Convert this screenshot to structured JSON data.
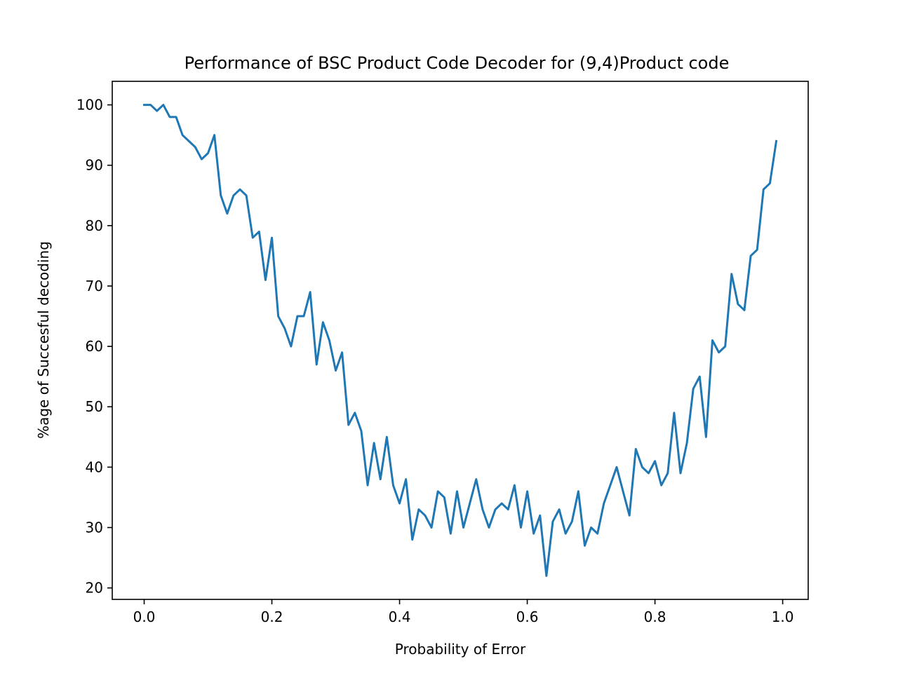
{
  "chart_data": {
    "type": "line",
    "title": "Performance of BSC Product Code Decoder for (9,4)Product code",
    "xlabel": "Probability of Error",
    "ylabel": "%age of Succesful decoding",
    "xlim": [
      -0.05,
      1.04
    ],
    "ylim": [
      18.1,
      103.9
    ],
    "xticks": [
      0.0,
      0.2,
      0.4,
      0.6,
      0.8,
      1.0
    ],
    "xtick_labels": [
      "0.0",
      "0.2",
      "0.4",
      "0.6",
      "0.8",
      "1.0"
    ],
    "yticks": [
      20,
      30,
      40,
      50,
      60,
      70,
      80,
      90,
      100
    ],
    "ytick_labels": [
      "20",
      "30",
      "40",
      "50",
      "60",
      "70",
      "80",
      "90",
      "100"
    ],
    "grid": false,
    "colors": {
      "line": "#1f77b4",
      "axes": "#000000",
      "background": "#ffffff"
    },
    "series": [
      {
        "x": [
          0.0,
          0.01,
          0.02,
          0.03,
          0.04,
          0.05,
          0.06,
          0.07,
          0.08,
          0.09,
          0.1,
          0.11,
          0.12,
          0.13,
          0.14,
          0.15,
          0.16,
          0.17,
          0.18,
          0.19,
          0.2,
          0.21,
          0.22,
          0.23,
          0.24,
          0.25,
          0.26,
          0.27,
          0.28,
          0.29,
          0.3,
          0.31,
          0.32,
          0.33,
          0.34,
          0.35,
          0.36,
          0.37,
          0.38,
          0.39,
          0.4,
          0.41,
          0.42,
          0.43,
          0.44,
          0.45,
          0.46,
          0.47,
          0.48,
          0.49,
          0.5,
          0.51,
          0.52,
          0.53,
          0.54,
          0.55,
          0.56,
          0.57,
          0.58,
          0.59,
          0.6,
          0.61,
          0.62,
          0.63,
          0.64,
          0.65,
          0.66,
          0.67,
          0.68,
          0.69,
          0.7,
          0.71,
          0.72,
          0.73,
          0.74,
          0.75,
          0.76,
          0.77,
          0.78,
          0.79,
          0.8,
          0.81,
          0.82,
          0.83,
          0.84,
          0.85,
          0.86,
          0.87,
          0.88,
          0.89,
          0.9,
          0.91,
          0.92,
          0.93,
          0.94,
          0.95,
          0.96,
          0.97,
          0.98,
          0.99
        ],
        "values": [
          100,
          100,
          99,
          100,
          98,
          98,
          95,
          94,
          93,
          91,
          92,
          95,
          85,
          82,
          85,
          86,
          85,
          78,
          79,
          71,
          78,
          65,
          63,
          60,
          65,
          65,
          69,
          57,
          64,
          61,
          56,
          59,
          47,
          49,
          46,
          37,
          44,
          38,
          45,
          37,
          34,
          38,
          28,
          33,
          32,
          30,
          36,
          35,
          29,
          36,
          30,
          34,
          38,
          33,
          30,
          33,
          34,
          33,
          37,
          30,
          36,
          29,
          32,
          22,
          31,
          33,
          29,
          31,
          36,
          27,
          30,
          29,
          34,
          37,
          40,
          36,
          32,
          43,
          40,
          39,
          41,
          37,
          39,
          49,
          39,
          44,
          53,
          55,
          45,
          61,
          59,
          60,
          72,
          67,
          66,
          75,
          76,
          86,
          87,
          94
        ]
      }
    ]
  }
}
